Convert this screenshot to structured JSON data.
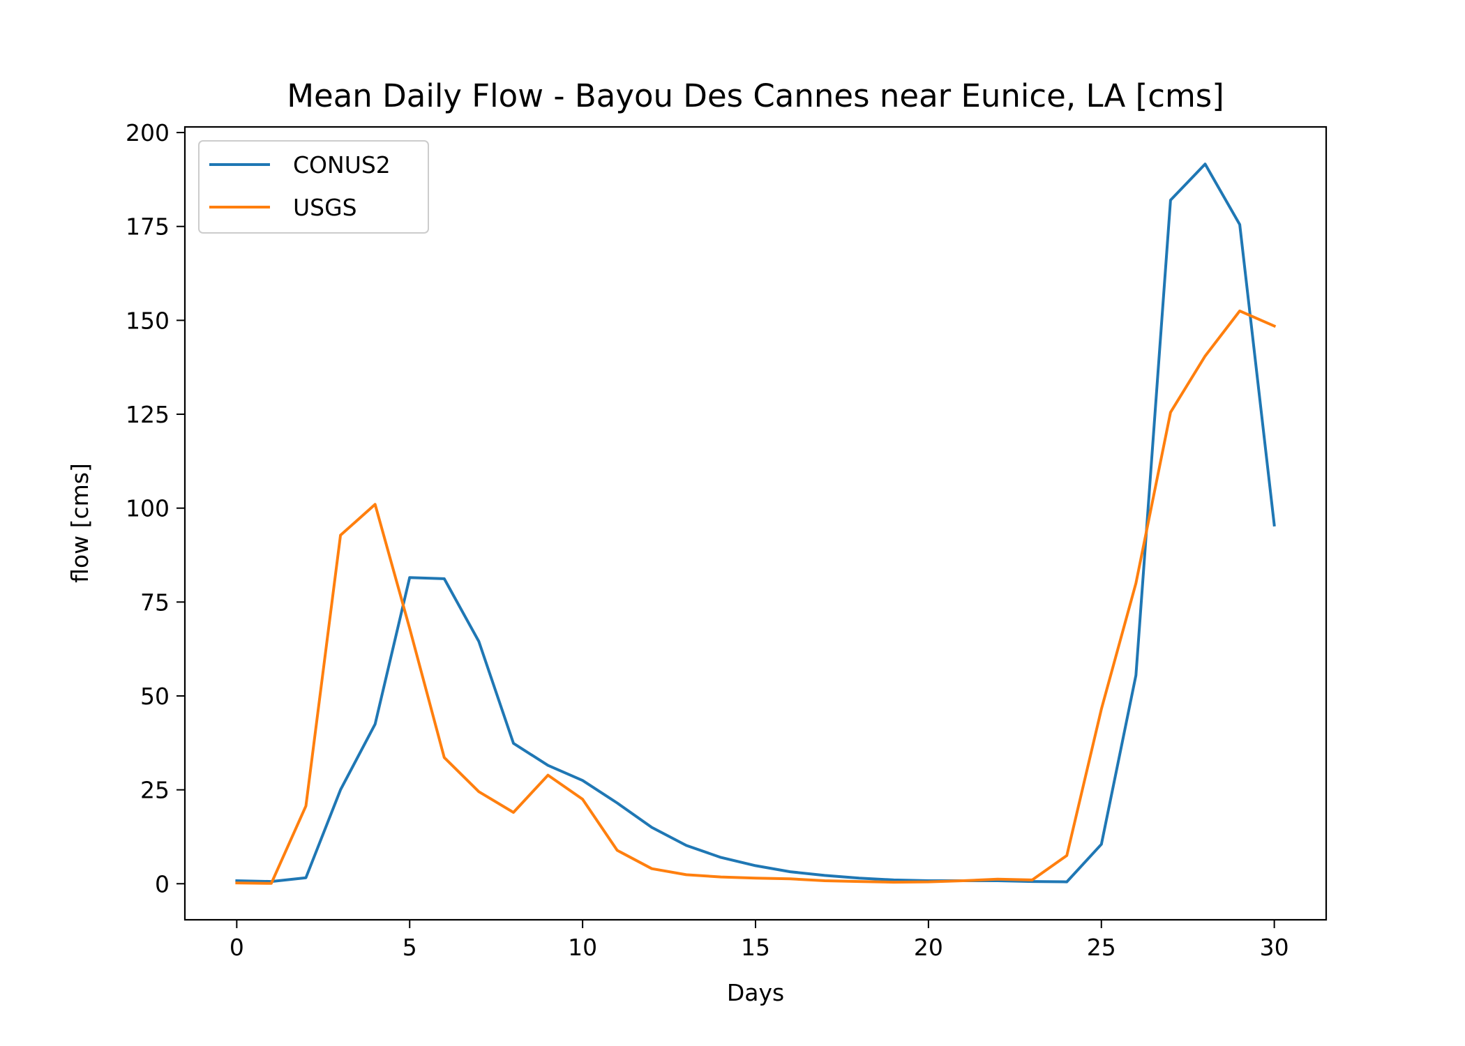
{
  "chart_data": {
    "type": "line",
    "title": "Mean Daily Flow - Bayou Des Cannes near Eunice, LA [cms]",
    "xlabel": "Days",
    "ylabel": "flow [cms]",
    "xlim": [
      -1.5,
      31.5
    ],
    "ylim": [
      -9.6,
      201.5
    ],
    "xticks": [
      0,
      5,
      10,
      15,
      20,
      25,
      30
    ],
    "yticks": [
      0,
      25,
      50,
      75,
      100,
      125,
      150,
      175,
      200
    ],
    "grid": false,
    "legend_position": "upper-left",
    "x": [
      0,
      1,
      2,
      3,
      4,
      5,
      6,
      7,
      8,
      9,
      10,
      11,
      12,
      13,
      14,
      15,
      16,
      17,
      18,
      19,
      20,
      21,
      22,
      23,
      24,
      25,
      26,
      27,
      28,
      29,
      30
    ],
    "series": [
      {
        "name": "CONUS2",
        "color": "#1f77b4",
        "values": [
          0.8,
          0.6,
          1.6,
          25,
          42.5,
          81.5,
          81.2,
          64.5,
          37.4,
          31.5,
          27.5,
          21.5,
          15,
          10.2,
          7,
          4.8,
          3.2,
          2.2,
          1.5,
          1,
          0.8,
          0.8,
          0.8,
          0.6,
          0.5,
          10.5,
          55.5,
          182,
          191.6,
          175.5,
          95.5
        ]
      },
      {
        "name": "USGS",
        "color": "#ff7f0e",
        "values": [
          0.2,
          0.1,
          20.7,
          92.8,
          101,
          68,
          33.6,
          24.5,
          19,
          28.9,
          22.5,
          8.9,
          4,
          2.4,
          1.8,
          1.5,
          1.3,
          0.8,
          0.6,
          0.4,
          0.5,
          0.8,
          1.2,
          1,
          7.5,
          46.5,
          80,
          125.5,
          140.5,
          152.5,
          148.5
        ]
      }
    ]
  }
}
